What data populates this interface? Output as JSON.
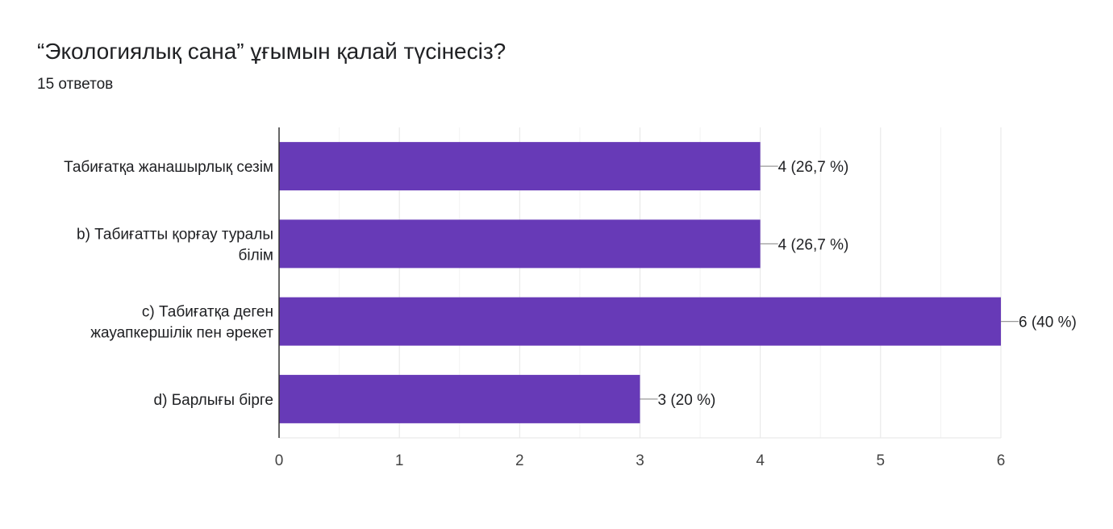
{
  "header": {
    "title": "“Экологиялық сана” ұғымын қалай түсінесіз?",
    "response_count": "15 ответов"
  },
  "colors": {
    "bar": "#673ab7",
    "grid": "#e6e6e6",
    "axis": "#333333",
    "text": "#202124",
    "leader": "#999999"
  },
  "chart_data": {
    "type": "bar",
    "orientation": "horizontal",
    "title": "“Экологиялық сана” ұғымын қалай түсінесіз?",
    "categories": [
      [
        "Табиғатқа жанашырлық сезім"
      ],
      [
        "b) Табиғатты қорғау туралы",
        "білім"
      ],
      [
        "c) Табиғатқа деген",
        "жауапкершілік пен әрекет"
      ],
      [
        "d) Барлығы бірге"
      ]
    ],
    "values": [
      4,
      4,
      6,
      3
    ],
    "data_labels": [
      "4 (26,7 %)",
      "4 (26,7 %)",
      "6 (40 %)",
      "3 (20 %)"
    ],
    "xlim": [
      0,
      6
    ],
    "ticks": [
      "0",
      "1",
      "2",
      "3",
      "4",
      "5",
      "6"
    ],
    "grid": true,
    "legend": "none"
  }
}
